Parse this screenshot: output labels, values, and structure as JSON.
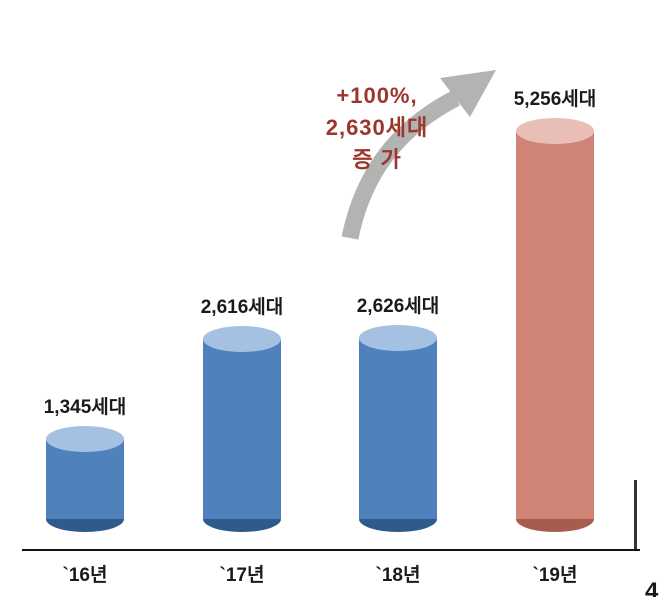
{
  "page": {
    "page_number": "4"
  },
  "chart_data": {
    "type": "bar",
    "variant": "3d-cylinder",
    "title": "",
    "xlabel": "",
    "ylabel": "",
    "unit": "세대",
    "ylim": [
      0,
      5500
    ],
    "grid": false,
    "legend": false,
    "categories": [
      "`16년",
      "`17년",
      "`18년",
      "`19년"
    ],
    "values": [
      1345,
      2616,
      2626,
      5256
    ],
    "value_labels": [
      "1,345세대",
      "2,616세대",
      "2,626세대",
      "5,256세대"
    ],
    "bars": [
      {
        "category": "`16년",
        "value": 1345,
        "label": "1,345세대",
        "body": "#4f81bd",
        "top": "#a5c1e2",
        "bottom": "#2f5a8c"
      },
      {
        "category": "`17년",
        "value": 2616,
        "label": "2,616세대",
        "body": "#4f81bd",
        "top": "#a5c1e2",
        "bottom": "#2f5a8c"
      },
      {
        "category": "`18년",
        "value": 2626,
        "label": "2,626세대",
        "body": "#4f81bd",
        "top": "#a5c1e2",
        "bottom": "#2f5a8c"
      },
      {
        "category": "`19년",
        "value": 5256,
        "label": "5,256세대",
        "body": "#cf8476",
        "top": "#e9beb6",
        "bottom": "#a85c4e"
      }
    ],
    "annotation": {
      "lines": [
        "+100%,",
        "2,630세대",
        "증 가"
      ],
      "color": "#9c352c"
    }
  }
}
